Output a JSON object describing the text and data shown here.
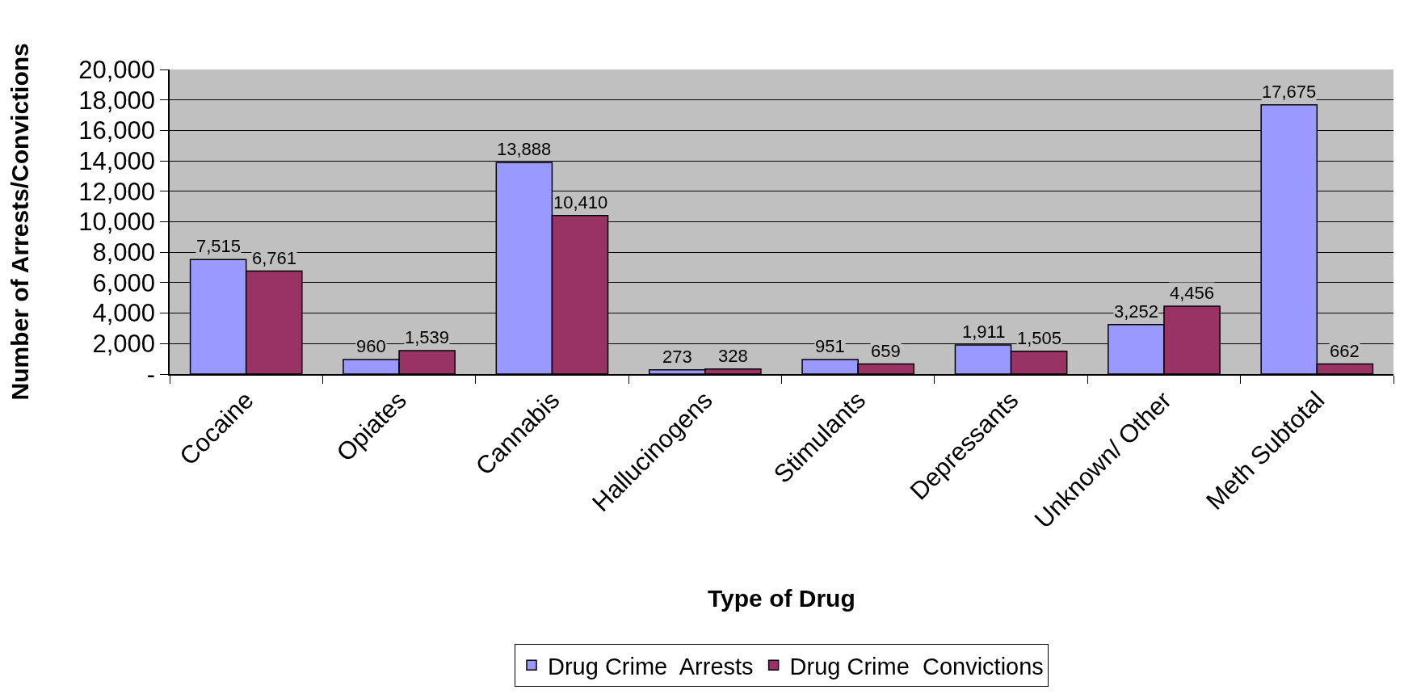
{
  "chart_data": {
    "type": "bar",
    "xlabel": "Type of Drug",
    "ylabel": "Number of Arrests/Convictions",
    "categories": [
      "Cocaine",
      "Opiates",
      "Cannabis",
      "Hallucinogens",
      "Stimulants",
      "Depressants",
      "Unknown/ Other",
      "Meth Subtotal"
    ],
    "series": [
      {
        "name": "Drug Crime  Arrests",
        "color": "#9999ff",
        "values": [
          7515,
          960,
          13888,
          273,
          951,
          1911,
          3252,
          17675
        ],
        "value_labels": [
          "7,515",
          "960",
          "13,888",
          "273",
          "951",
          "1,911",
          "3,252",
          "17,675"
        ]
      },
      {
        "name": "Drug Crime  Convictions",
        "color": "#993366",
        "values": [
          6761,
          1539,
          10410,
          328,
          659,
          1505,
          4456,
          662
        ],
        "value_labels": [
          "6,761",
          "1,539",
          "10,410",
          "328",
          "659",
          "1,505",
          "4,456",
          "662"
        ]
      }
    ],
    "ylim": [
      0,
      20000
    ],
    "yticks": [
      {
        "value": 0,
        "label": "-"
      },
      {
        "value": 2000,
        "label": "2,000"
      },
      {
        "value": 4000,
        "label": "4,000"
      },
      {
        "value": 6000,
        "label": "6,000"
      },
      {
        "value": 8000,
        "label": "8,000"
      },
      {
        "value": 10000,
        "label": "10,000"
      },
      {
        "value": 12000,
        "label": "12,000"
      },
      {
        "value": 14000,
        "label": "14,000"
      },
      {
        "value": 16000,
        "label": "16,000"
      },
      {
        "value": 18000,
        "label": "18,000"
      },
      {
        "value": 20000,
        "label": "20,000"
      }
    ],
    "grid": "y",
    "legend": "bottom"
  }
}
